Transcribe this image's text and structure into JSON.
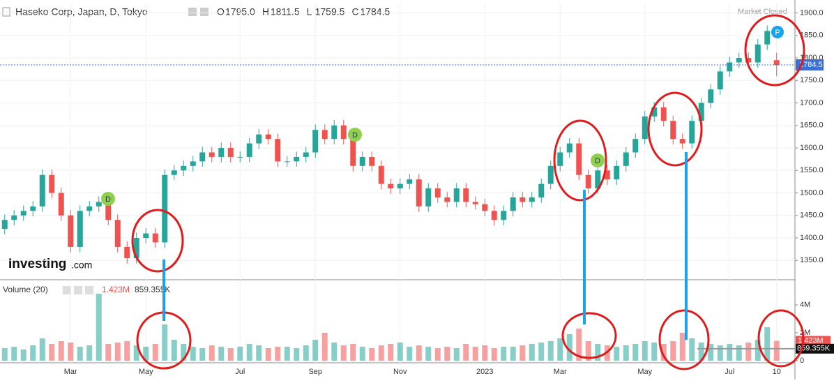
{
  "header": {
    "title": "Haseko Corp, Japan, D, Tokyo",
    "ohlc": [
      {
        "label": "O",
        "value": {
          "value": 1795,
          "label": "1795.0"
        }
      },
      {
        "label": "H",
        "value": {
          "value": 1811.5,
          "label": "1811.5"
        }
      },
      {
        "label": "L",
        "value": {
          "value": 1759.5,
          "label": "1759.5"
        }
      },
      {
        "label": "C",
        "value": {
          "value": 1784.5,
          "label": "1784.5"
        }
      }
    ],
    "status": "Market Closed"
  },
  "logo": {
    "brand": "Investing",
    "suffix": ".com"
  },
  "events": [
    {
      "label": "D"
    },
    {
      "label": "D"
    },
    {
      "label": "D"
    },
    {
      "label": "P"
    }
  ],
  "chart_data": [
    {
      "type": "candlestick",
      "categories": [
        null,
        null,
        null,
        null,
        null,
        null,
        null,
        "Mar",
        null,
        null,
        null,
        null,
        null,
        null,
        null,
        "May",
        null,
        null,
        null,
        null,
        null,
        null,
        null,
        null,
        null,
        "Jul",
        null,
        null,
        null,
        null,
        null,
        null,
        null,
        "Sep",
        null,
        null,
        null,
        null,
        null,
        null,
        null,
        null,
        "Nov",
        null,
        null,
        null,
        null,
        null,
        null,
        null,
        null,
        "2023",
        null,
        null,
        null,
        null,
        null,
        null,
        null,
        "Mar",
        null,
        null,
        null,
        null,
        null,
        null,
        null,
        null,
        "May",
        null,
        null,
        null,
        null,
        null,
        null,
        null,
        null,
        "Jul",
        null,
        null,
        null,
        null,
        "10"
      ],
      "open": [
        1420,
        1440,
        1450,
        1460,
        1470,
        1540,
        1500,
        1450,
        1380,
        1460,
        1470,
        1480,
        1440,
        1380,
        1355,
        1400,
        1410,
        1390,
        1540,
        1550,
        1560,
        1570,
        1590,
        1580,
        1600,
        1580,
        1580,
        1610,
        1630,
        1620,
        1570,
        1570,
        1580,
        1590,
        1640,
        1620,
        1650,
        1620,
        1560,
        1580,
        1560,
        1520,
        1510,
        1520,
        1530,
        1470,
        1510,
        1490,
        1480,
        1510,
        1480,
        1475,
        1460,
        1440,
        1460,
        1490,
        1480,
        1490,
        1520,
        1560,
        1590,
        1610,
        1540,
        1510,
        1550,
        1530,
        1560,
        1590,
        1620,
        1670,
        1690,
        1660,
        1620,
        1610,
        1660,
        1700,
        1730,
        1770,
        1790,
        1800,
        1790,
        1830,
        1795
      ],
      "high": [
        1452,
        1462,
        1472,
        1482,
        1552,
        1552,
        1512,
        1462,
        1472,
        1482,
        1492,
        1492,
        1452,
        1392,
        1412,
        1422,
        1422,
        1552,
        1562,
        1572,
        1582,
        1602,
        1602,
        1612,
        1612,
        1592,
        1622,
        1642,
        1642,
        1632,
        1582,
        1592,
        1602,
        1652,
        1652,
        1662,
        1662,
        1632,
        1592,
        1592,
        1572,
        1532,
        1532,
        1542,
        1542,
        1522,
        1522,
        1502,
        1522,
        1522,
        1492,
        1487,
        1472,
        1472,
        1502,
        1502,
        1502,
        1532,
        1572,
        1602,
        1622,
        1622,
        1552,
        1562,
        1562,
        1572,
        1602,
        1632,
        1682,
        1702,
        1702,
        1672,
        1632,
        1672,
        1712,
        1742,
        1782,
        1802,
        1812,
        1812,
        1842,
        1872,
        1811.5
      ],
      "low": [
        1408,
        1428,
        1438,
        1448,
        1458,
        1488,
        1438,
        1368,
        1368,
        1448,
        1458,
        1428,
        1368,
        1343,
        1343,
        1388,
        1378,
        1378,
        1528,
        1538,
        1548,
        1558,
        1568,
        1568,
        1568,
        1568,
        1568,
        1598,
        1608,
        1558,
        1558,
        1558,
        1568,
        1578,
        1608,
        1608,
        1608,
        1548,
        1548,
        1548,
        1508,
        1498,
        1498,
        1508,
        1458,
        1458,
        1478,
        1468,
        1468,
        1468,
        1463,
        1448,
        1428,
        1428,
        1448,
        1468,
        1468,
        1478,
        1508,
        1548,
        1578,
        1528,
        1498,
        1498,
        1518,
        1518,
        1548,
        1578,
        1608,
        1658,
        1648,
        1608,
        1598,
        1598,
        1648,
        1688,
        1718,
        1758,
        1778,
        1778,
        1778,
        1818,
        1759.5
      ],
      "close": [
        1440,
        1450,
        1460,
        1470,
        1540,
        1500,
        1450,
        1380,
        1460,
        1470,
        1480,
        1440,
        1380,
        1355,
        1400,
        1410,
        1390,
        1540,
        1550,
        1560,
        1570,
        1590,
        1580,
        1600,
        1580,
        1580,
        1610,
        1630,
        1620,
        1570,
        1570,
        1580,
        1590,
        1640,
        1620,
        1650,
        1620,
        1560,
        1580,
        1560,
        1520,
        1510,
        1520,
        1530,
        1470,
        1510,
        1490,
        1480,
        1510,
        1480,
        1475,
        1460,
        1440,
        1460,
        1490,
        1480,
        1490,
        1520,
        1560,
        1590,
        1610,
        1540,
        1510,
        1550,
        1530,
        1560,
        1590,
        1620,
        1670,
        1690,
        1660,
        1620,
        1610,
        1660,
        1700,
        1730,
        1770,
        1790,
        1800,
        1790,
        1830,
        1860,
        1784.5
      ],
      "up_color": "#26a69a",
      "down_color": "#ef5350",
      "last_price": 1784.5,
      "last_color": "#3c6fd6",
      "ylim": [
        1307,
        1921
      ],
      "yticks": [
        {
          "value": 1350,
          "label": "1350.0"
        },
        {
          "value": 1400,
          "label": "1400.0"
        },
        {
          "value": 1450,
          "label": "1450.0"
        },
        {
          "value": 1500,
          "label": "1500.0"
        },
        {
          "value": 1550,
          "label": "1550.0"
        },
        {
          "value": 1600,
          "label": "1600.0"
        },
        {
          "value": 1650,
          "label": "1650.0"
        },
        {
          "value": 1700,
          "label": "1700.0"
        },
        {
          "value": 1750,
          "label": "1750.0"
        },
        {
          "value": 1800,
          "label": "1800.0"
        },
        {
          "value": 1850,
          "label": "1850.0"
        },
        {
          "value": 1900,
          "label": "1900.0"
        }
      ],
      "grid": true
    },
    {
      "type": "volume",
      "title": "Volume (20)",
      "values": [
        0.9,
        1.0,
        0.8,
        1.1,
        1.6,
        1.2,
        1.4,
        1.3,
        1.0,
        1.1,
        4.8,
        1.2,
        1.3,
        1.4,
        1.1,
        1.0,
        1.2,
        2.6,
        1.5,
        1.2,
        1.0,
        0.9,
        1.1,
        1.0,
        0.9,
        1.0,
        1.2,
        1.1,
        0.9,
        1.0,
        1.0,
        0.9,
        1.1,
        1.5,
        2.0,
        1.3,
        1.1,
        1.2,
        1.0,
        0.9,
        1.1,
        1.2,
        1.3,
        1.0,
        1.1,
        1.0,
        0.9,
        1.0,
        0.9,
        1.2,
        1.0,
        1.1,
        0.9,
        1.0,
        1.0,
        1.1,
        1.2,
        1.3,
        1.4,
        1.6,
        1.9,
        2.3,
        1.4,
        1.2,
        1.1,
        1.0,
        1.1,
        1.2,
        1.4,
        1.3,
        1.2,
        1.4,
        2.0,
        1.6,
        1.3,
        1.2,
        1.1,
        1.2,
        1.1,
        1.3,
        1.5,
        2.4,
        1.423
      ],
      "value_labels": {
        "82": "1.423M"
      },
      "moving_average": {
        "value": 0.859355,
        "label": "859.355K",
        "color": "#999999"
      },
      "ylim": [
        0,
        5.8
      ],
      "yticks": [
        {
          "value": 0,
          "label": "0"
        },
        {
          "value": 2,
          "label": "2M"
        },
        {
          "value": 4,
          "label": "4M"
        }
      ]
    }
  ]
}
